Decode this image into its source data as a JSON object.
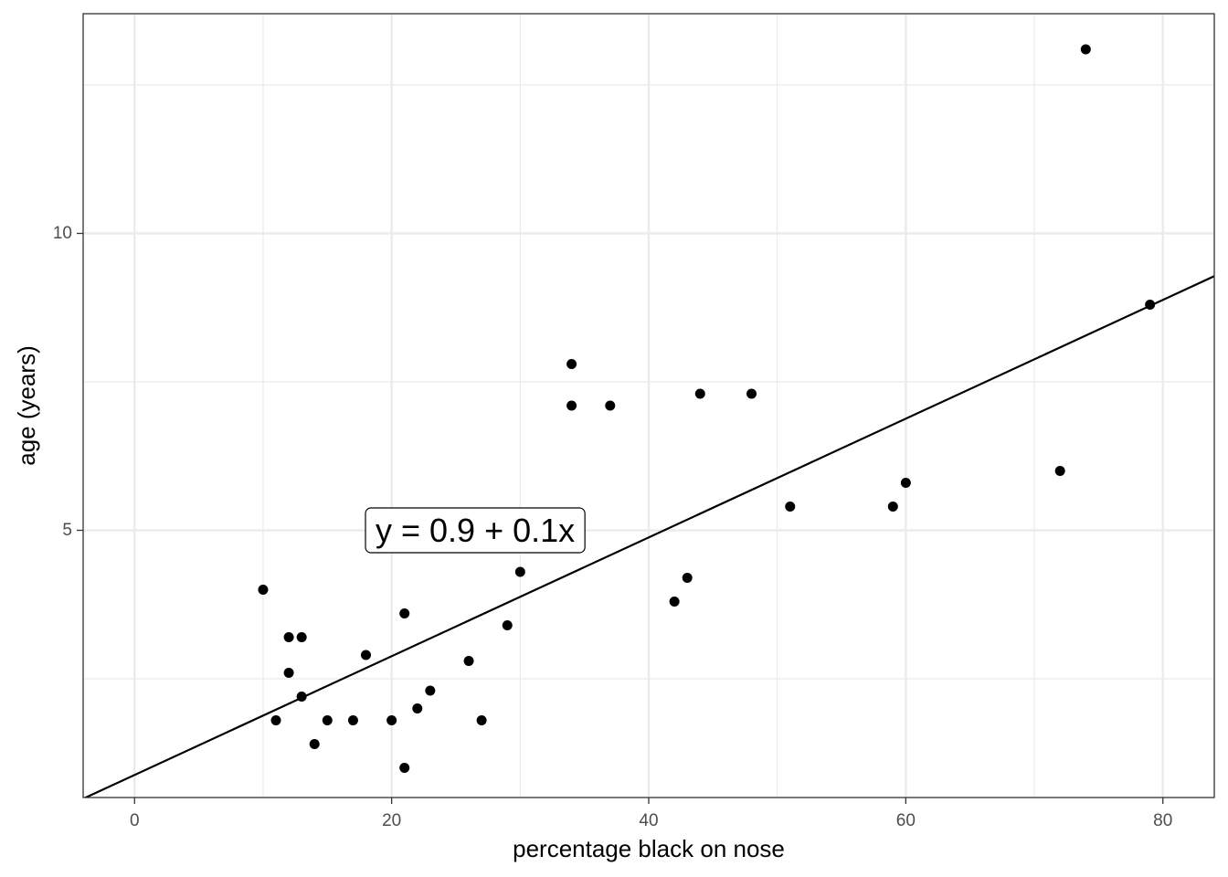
{
  "chart_data": {
    "type": "scatter",
    "title": "",
    "xlabel": "percentage black on nose",
    "ylabel": "age (years)",
    "xlim": [
      -4,
      84
    ],
    "ylim": [
      0.5,
      13.7
    ],
    "x_ticks": [
      0,
      20,
      40,
      60,
      80
    ],
    "x_tick_labels": [
      "0",
      "20",
      "40",
      "60",
      "80"
    ],
    "y_ticks": [
      5,
      10
    ],
    "y_tick_labels": [
      "5",
      "10"
    ],
    "x_minor_grid": [
      10,
      30,
      50,
      70
    ],
    "y_minor_grid": [
      2.5,
      7.5,
      12.5
    ],
    "grid": true,
    "legend": "none",
    "points": {
      "x": [
        10,
        11,
        12,
        12,
        13,
        13,
        14,
        15,
        17,
        18,
        20,
        21,
        21,
        22,
        23,
        26,
        27,
        29,
        30,
        34,
        34,
        37,
        42,
        43,
        44,
        48,
        51,
        59,
        60,
        72,
        74,
        79
      ],
      "y": [
        4.0,
        1.8,
        3.2,
        2.6,
        3.2,
        2.2,
        1.4,
        1.8,
        1.8,
        2.9,
        1.8,
        3.6,
        1.0,
        2.0,
        2.3,
        2.8,
        1.8,
        3.4,
        4.3,
        7.8,
        7.1,
        7.1,
        3.8,
        4.2,
        7.3,
        7.3,
        5.4,
        5.4,
        5.8,
        6.0,
        13.1,
        8.8
      ]
    },
    "regression_line": {
      "intercept": 0.88,
      "slope": 0.1
    },
    "annotation": {
      "text": "y = 0.9 + 0.1x",
      "x": 26.5,
      "y": 5.0
    },
    "colors": {
      "points": "#000000",
      "line": "#000000",
      "grid": "#ebebeb",
      "panel_border": "#333333"
    }
  }
}
